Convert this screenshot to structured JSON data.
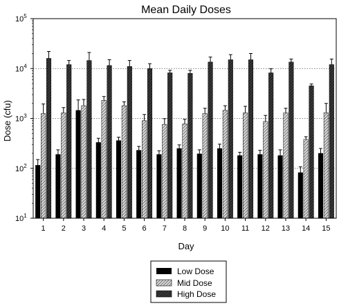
{
  "chart_data": {
    "type": "bar",
    "title": "Mean Daily Doses",
    "xlabel": "Day",
    "ylabel": "Dose (cfu)",
    "yscale": "log",
    "ylim": [
      10,
      100000
    ],
    "grid": "horizontal dotted at decades",
    "legend_position": "bottom-center",
    "y_tick_labels": [
      "10^1",
      "10^2",
      "10^3",
      "10^4",
      "10^5"
    ],
    "categories": [
      "1",
      "2",
      "3",
      "4",
      "5",
      "6",
      "7",
      "8",
      "9",
      "10",
      "11",
      "12",
      "13",
      "14",
      "15"
    ],
    "series": [
      {
        "name": "Low Dose",
        "fill": "solid black",
        "values": [
          115,
          190,
          1450,
          330,
          360,
          230,
          190,
          250,
          195,
          250,
          180,
          190,
          180,
          82,
          200
        ],
        "error": [
          35,
          45,
          900,
          70,
          60,
          45,
          35,
          45,
          40,
          55,
          30,
          40,
          55,
          25,
          50
        ]
      },
      {
        "name": "Mid Dose",
        "fill": "diagonal hatch",
        "values": [
          1250,
          1300,
          1800,
          2300,
          1800,
          900,
          760,
          780,
          1250,
          1450,
          1300,
          870,
          1300,
          380,
          1300
        ],
        "error": [
          700,
          350,
          600,
          450,
          350,
          300,
          230,
          180,
          350,
          350,
          450,
          280,
          300,
          50,
          700
        ]
      },
      {
        "name": "High Dose",
        "fill": "dark crosshatch",
        "values": [
          16000,
          12000,
          14500,
          11500,
          11000,
          10000,
          8200,
          8000,
          13500,
          15000,
          15000,
          8200,
          13500,
          4500,
          12000
        ],
        "error": [
          6000,
          2500,
          6500,
          3500,
          3500,
          2500,
          1000,
          1200,
          3500,
          4000,
          5000,
          1700,
          2000,
          400,
          3500
        ]
      }
    ],
    "colors": {
      "low": "#000000",
      "mid_bg": "#d9d9d9",
      "high_bg": "#262626",
      "grid": "#555555"
    }
  }
}
